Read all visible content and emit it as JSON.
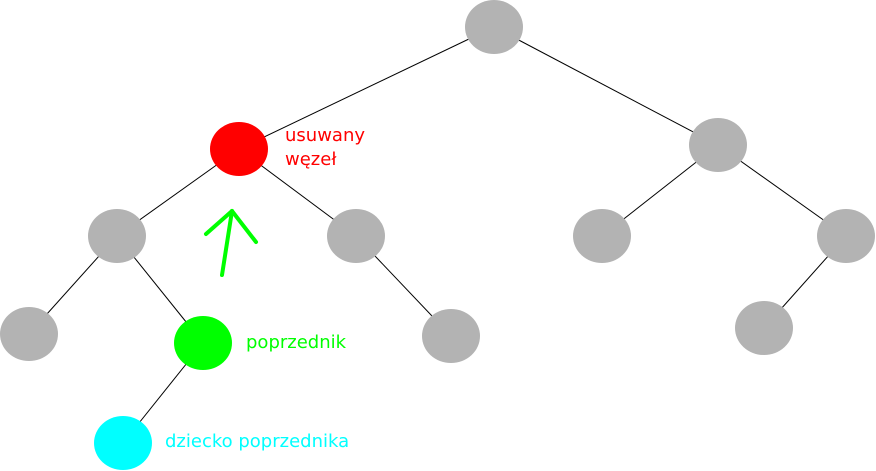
{
  "colors": {
    "node": "#b3b3b3",
    "removed": "#ff0000",
    "predecessor": "#00ff00",
    "child": "#00ffff",
    "edge": "#000000",
    "arrow": "#00ff00"
  },
  "labels": {
    "removed_line1": "usuwany",
    "removed_line2": "węzeł",
    "predecessor": "poprzednik",
    "child": "dziecko poprzednika"
  },
  "nodes": [
    {
      "id": "root",
      "role": "normal"
    },
    {
      "id": "removed",
      "role": "removed"
    },
    {
      "id": "right",
      "role": "normal"
    },
    {
      "id": "left-left",
      "role": "normal"
    },
    {
      "id": "left-right",
      "role": "normal"
    },
    {
      "id": "right-left",
      "role": "normal"
    },
    {
      "id": "right-right",
      "role": "normal"
    },
    {
      "id": "ll-left",
      "role": "normal"
    },
    {
      "id": "predecessor",
      "role": "predecessor"
    },
    {
      "id": "lr-right",
      "role": "normal"
    },
    {
      "id": "rr-left",
      "role": "normal"
    },
    {
      "id": "predecessor-child",
      "role": "child"
    }
  ],
  "edges": [
    [
      "root",
      "removed"
    ],
    [
      "root",
      "right"
    ],
    [
      "removed",
      "left-left"
    ],
    [
      "removed",
      "left-right"
    ],
    [
      "right",
      "right-left"
    ],
    [
      "right",
      "right-right"
    ],
    [
      "left-left",
      "ll-left"
    ],
    [
      "left-left",
      "predecessor"
    ],
    [
      "left-right",
      "lr-right"
    ],
    [
      "right-right",
      "rr-left"
    ],
    [
      "predecessor",
      "predecessor-child"
    ]
  ]
}
